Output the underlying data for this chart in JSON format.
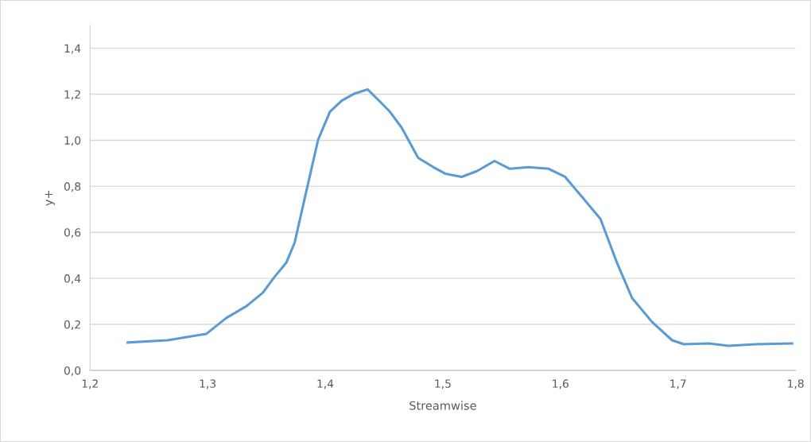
{
  "chart_data": {
    "type": "line",
    "xlabel": "Streamwise",
    "ylabel": "y+",
    "color": "#5b9bd5",
    "grid": "y",
    "marker": "none",
    "line_style": "solid",
    "x": [
      1.232,
      1.266,
      1.299,
      1.316,
      1.333,
      1.347,
      1.357,
      1.367,
      1.374,
      1.384,
      1.394,
      1.404,
      1.414,
      1.425,
      1.436,
      1.445,
      1.455,
      1.465,
      1.479,
      1.492,
      1.502,
      1.516,
      1.529,
      1.544,
      1.557,
      1.573,
      1.59,
      1.604,
      1.617,
      1.634,
      1.648,
      1.661,
      1.678,
      1.695,
      1.705,
      1.726,
      1.743,
      1.766,
      1.797
    ],
    "values": [
      0.121,
      0.131,
      0.159,
      0.228,
      0.279,
      0.338,
      0.407,
      0.469,
      0.555,
      0.78,
      1.003,
      1.124,
      1.172,
      1.203,
      1.221,
      1.176,
      1.124,
      1.055,
      0.924,
      0.883,
      0.855,
      0.841,
      0.866,
      0.91,
      0.876,
      0.883,
      0.876,
      0.841,
      0.762,
      0.659,
      0.469,
      0.314,
      0.21,
      0.131,
      0.114,
      0.117,
      0.107,
      0.114,
      0.117
    ],
    "xlim": [
      1.2,
      1.8
    ],
    "xticks": [
      {
        "value": 1.2,
        "label": "1,2"
      },
      {
        "value": 1.3,
        "label": "1,3"
      },
      {
        "value": 1.4,
        "label": "1,4"
      },
      {
        "value": 1.5,
        "label": "1,5"
      },
      {
        "value": 1.6,
        "label": "1,6"
      },
      {
        "value": 1.7,
        "label": "1,7"
      },
      {
        "value": 1.8,
        "label": "1,8"
      }
    ],
    "ylim": [
      0,
      1.5
    ],
    "yticks": [
      {
        "value": 0,
        "label": "0,0"
      },
      {
        "value": 0.2,
        "label": "0,2"
      },
      {
        "value": 0.4,
        "label": "0,4"
      },
      {
        "value": 0.6,
        "label": "0,6"
      },
      {
        "value": 0.8,
        "label": "0,8"
      },
      {
        "value": 1.0,
        "label": "1,0"
      },
      {
        "value": 1.2,
        "label": "1,2"
      },
      {
        "value": 1.4,
        "label": "1,4"
      }
    ]
  }
}
